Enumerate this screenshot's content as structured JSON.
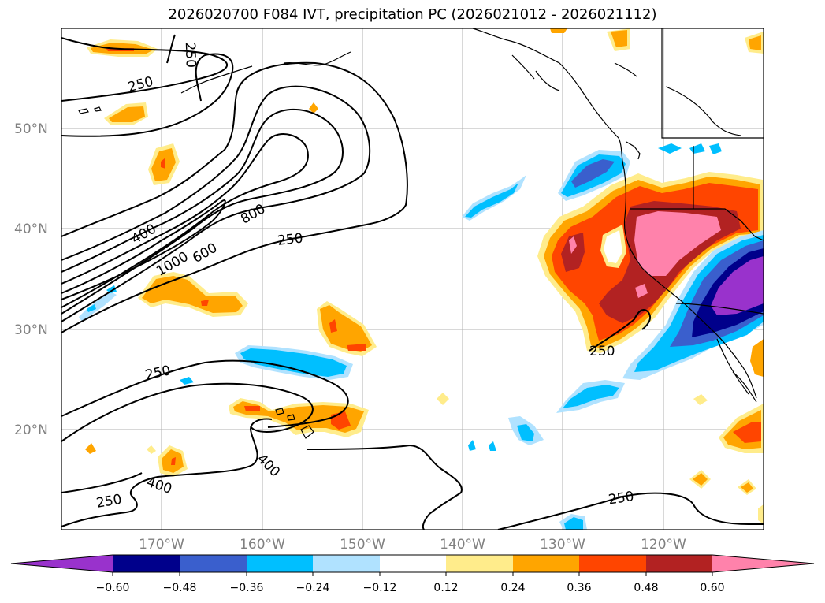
{
  "title": "2026020700 F084 IVT, precipitation PC (2026021012 - 2026021112)",
  "map": {
    "lat_labels": [
      "50°N",
      "40°N",
      "30°N",
      "20°N"
    ],
    "lon_labels": [
      "170°W",
      "160°W",
      "150°W",
      "140°W",
      "130°W",
      "120°W"
    ],
    "contour_labels": [
      "250",
      "250",
      "250",
      "250",
      "250",
      "250",
      "250",
      "400",
      "400",
      "400",
      "600",
      "800",
      "1000"
    ]
  },
  "colorbar": {
    "ticks": [
      "−0.60",
      "−0.48",
      "−0.36",
      "−0.24",
      "−0.12",
      "0.12",
      "0.24",
      "0.36",
      "0.48",
      "0.60"
    ],
    "colors": [
      "#9932cc",
      "#00008b",
      "#3a5fcd",
      "#00bfff",
      "#b0e2ff",
      "#ffffff",
      "#ffec8b",
      "#ffa500",
      "#ff4500",
      "#b22222",
      "#ff82ab"
    ]
  }
}
